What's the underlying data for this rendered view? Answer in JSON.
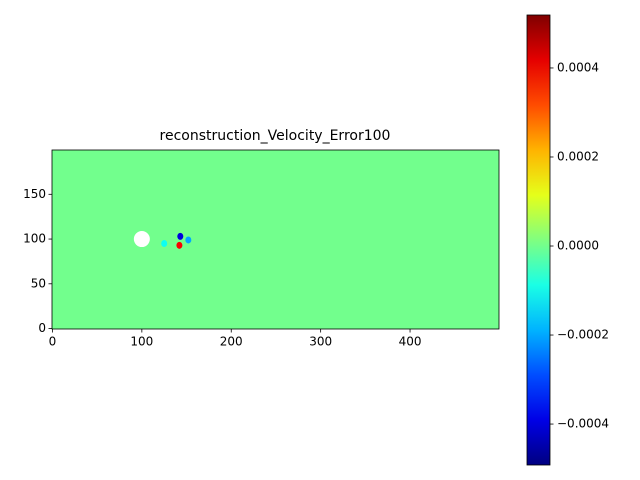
{
  "chart_data": {
    "type": "heatmap",
    "title": "reconstruction_Velocity_Error100",
    "xlim": [
      -0.5,
      499.5
    ],
    "ylim": [
      -0.5,
      199.5
    ],
    "xticks": [
      0,
      100,
      200,
      300,
      400
    ],
    "yticks": [
      0,
      50,
      100,
      150
    ],
    "background_value": 0,
    "spots": [
      {
        "x": 143,
        "y": 103,
        "value": -0.0004
      },
      {
        "x": 142,
        "y": 93,
        "value": 0.0004
      },
      {
        "x": 152,
        "y": 99,
        "value": -0.0002
      },
      {
        "x": 125,
        "y": 95,
        "value": -0.0001
      }
    ],
    "colormap": "jet",
    "clim": [
      -0.000492,
      0.000519
    ],
    "cticks": [
      {
        "value": -0.0004,
        "label": "−0.0004"
      },
      {
        "value": -0.0002,
        "label": "−0.0002"
      },
      {
        "value": 0,
        "label": "0.0000"
      },
      0.0002,
      0.0004
    ]
  }
}
